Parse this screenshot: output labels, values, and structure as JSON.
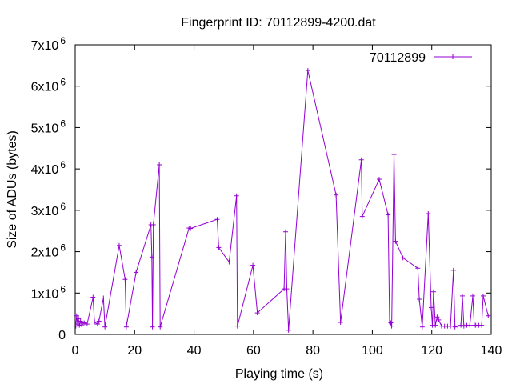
{
  "chart_data": {
    "type": "line",
    "title": "Fingerprint ID: 70112899-4200.dat",
    "xlabel": "Playing time (s)",
    "ylabel": "Size of ADUs (bytes)",
    "xlim": [
      0,
      140
    ],
    "ylim": [
      0,
      7000000
    ],
    "x_ticks": [
      "0",
      "20",
      "40",
      "60",
      "80",
      "100",
      "120",
      "140"
    ],
    "x_tick_values": [
      0,
      20,
      40,
      60,
      80,
      100,
      120,
      140
    ],
    "y_ticks": [
      {
        "value": 0,
        "mantissa": "0",
        "exp": ""
      },
      {
        "value": 1000000,
        "mantissa": "1x10",
        "exp": "6"
      },
      {
        "value": 2000000,
        "mantissa": "2x10",
        "exp": "6"
      },
      {
        "value": 3000000,
        "mantissa": "3x10",
        "exp": "6"
      },
      {
        "value": 4000000,
        "mantissa": "4x10",
        "exp": "6"
      },
      {
        "value": 5000000,
        "mantissa": "5x10",
        "exp": "6"
      },
      {
        "value": 6000000,
        "mantissa": "6x10",
        "exp": "6"
      },
      {
        "value": 7000000,
        "mantissa": "7x10",
        "exp": "6"
      }
    ],
    "grid": false,
    "legend_position": "top-right",
    "series": [
      {
        "name": "70112899",
        "color": "#9400d3",
        "points": [
          [
            0.2,
            200000
          ],
          [
            0.5,
            450000
          ],
          [
            0.8,
            250000
          ],
          [
            1.1,
            380000
          ],
          [
            1.4,
            220000
          ],
          [
            1.8,
            320000
          ],
          [
            2.2,
            230000
          ],
          [
            3,
            280000
          ],
          [
            4,
            250000
          ],
          [
            6,
            900000
          ],
          [
            6.5,
            300000
          ],
          [
            7.5,
            250000
          ],
          [
            8,
            320000
          ],
          [
            9.5,
            880000
          ],
          [
            10,
            180000
          ],
          [
            14.8,
            2150000
          ],
          [
            16.8,
            1330000
          ],
          [
            17.2,
            180000
          ],
          [
            20.5,
            1500000
          ],
          [
            25.5,
            2650000
          ],
          [
            25.8,
            1870000
          ],
          [
            26,
            180000
          ],
          [
            26.3,
            2650000
          ],
          [
            28.3,
            4100000
          ],
          [
            28.6,
            180000
          ],
          [
            38.3,
            2570000
          ],
          [
            38.8,
            2560000
          ],
          [
            47.8,
            2780000
          ],
          [
            48.3,
            2100000
          ],
          [
            51.8,
            1750000
          ],
          [
            54.3,
            3350000
          ],
          [
            54.6,
            200000
          ],
          [
            59.8,
            1670000
          ],
          [
            61.3,
            520000
          ],
          [
            70.3,
            1100000
          ],
          [
            70.8,
            2480000
          ],
          [
            71.2,
            1100000
          ],
          [
            71.8,
            100000
          ],
          [
            78.3,
            6380000
          ],
          [
            87.8,
            3370000
          ],
          [
            89.3,
            290000
          ],
          [
            96.3,
            4220000
          ],
          [
            96.6,
            2850000
          ],
          [
            102.3,
            3750000
          ],
          [
            105.3,
            2890000
          ],
          [
            105.8,
            300000
          ],
          [
            106.2,
            280000
          ],
          [
            106.5,
            200000
          ],
          [
            107.3,
            4350000
          ],
          [
            107.8,
            2250000
          ],
          [
            110.3,
            1850000
          ],
          [
            115.3,
            1600000
          ],
          [
            115.8,
            850000
          ],
          [
            116.8,
            180000
          ],
          [
            118.8,
            2920000
          ],
          [
            119.8,
            650000
          ],
          [
            120.2,
            220000
          ],
          [
            120.6,
            1030000
          ],
          [
            121.2,
            220000
          ],
          [
            121.8,
            420000
          ],
          [
            122.3,
            350000
          ],
          [
            123.3,
            200000
          ],
          [
            124.3,
            200000
          ],
          [
            125.3,
            200000
          ],
          [
            126.3,
            200000
          ],
          [
            127.3,
            1550000
          ],
          [
            127.8,
            180000
          ],
          [
            128.8,
            200000
          ],
          [
            129.8,
            220000
          ],
          [
            130.3,
            930000
          ],
          [
            130.8,
            200000
          ],
          [
            131.8,
            220000
          ],
          [
            132.8,
            220000
          ],
          [
            133.8,
            930000
          ],
          [
            134.3,
            220000
          ],
          [
            134.8,
            220000
          ],
          [
            135.8,
            220000
          ],
          [
            136.8,
            220000
          ],
          [
            137.3,
            930000
          ],
          [
            139,
            450000
          ]
        ]
      }
    ]
  }
}
